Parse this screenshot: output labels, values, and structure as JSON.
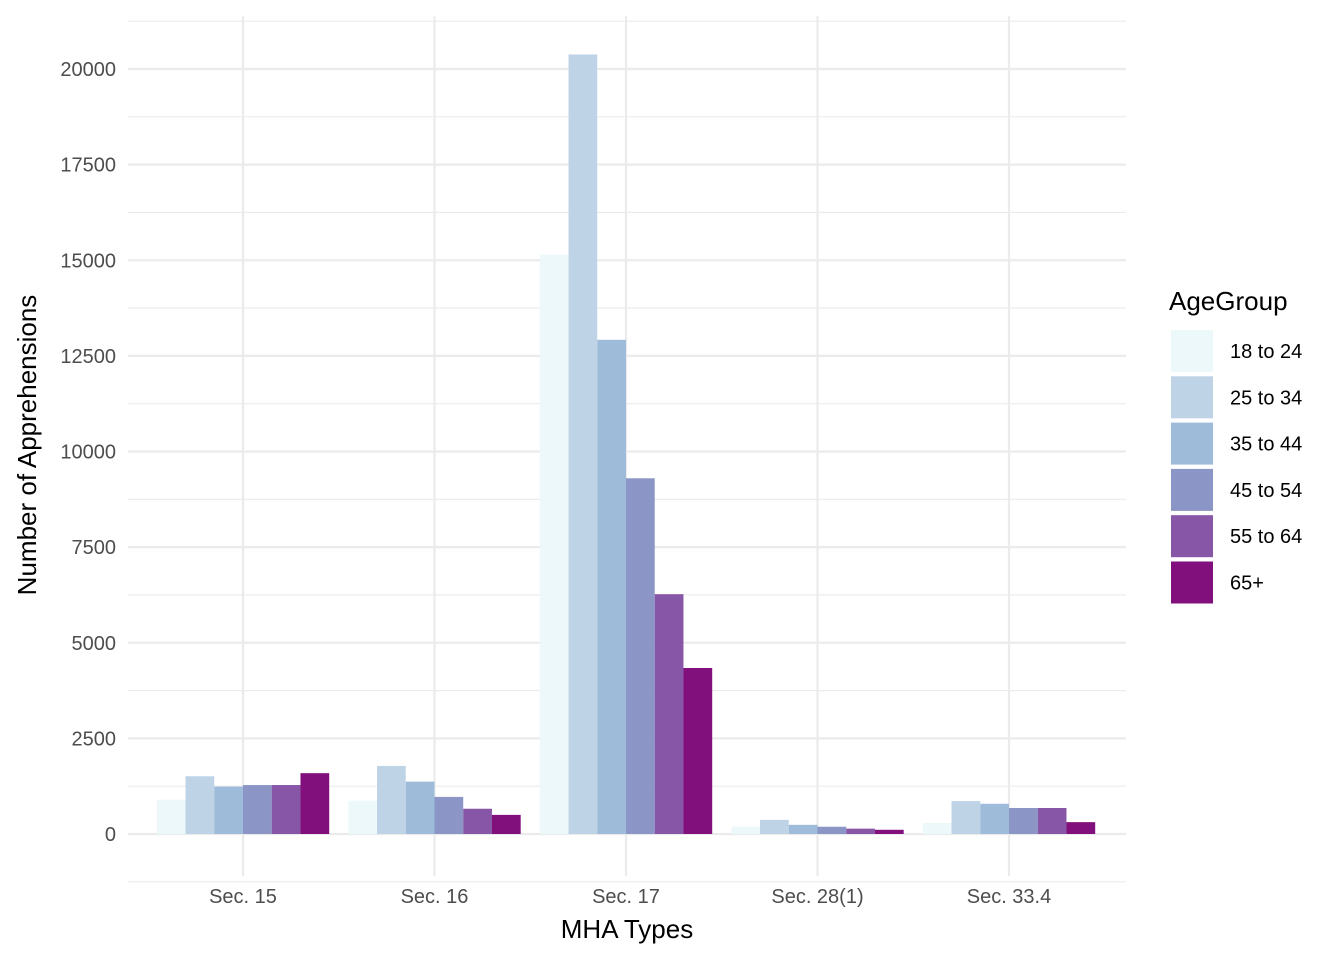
{
  "chart_data": {
    "type": "bar",
    "title": "",
    "xlabel": "MHA Types",
    "ylabel": "Number of Apprehensions",
    "categories": [
      "Sec. 15",
      "Sec. 16",
      "Sec. 17",
      "Sec. 28(1)",
      "Sec. 33.4"
    ],
    "ylim": [
      -1700,
      21700
    ],
    "yticks": [
      0,
      2500,
      5000,
      7500,
      10000,
      12500,
      15000,
      17500,
      20000
    ],
    "grid": true,
    "legend": {
      "title": "AgeGroup",
      "position": "right"
    },
    "series": [
      {
        "name": "18 to 24",
        "color": "#edf8fb",
        "values": [
          900,
          870,
          15150,
          190,
          290
        ]
      },
      {
        "name": "25 to 34",
        "color": "#bfd3e6",
        "values": [
          1510,
          1780,
          20380,
          370,
          860
        ]
      },
      {
        "name": "35 to 44",
        "color": "#9ebcda",
        "values": [
          1240,
          1370,
          12920,
          240,
          790
        ]
      },
      {
        "name": "45 to 54",
        "color": "#8c96c6",
        "values": [
          1280,
          970,
          9300,
          190,
          680
        ]
      },
      {
        "name": "55 to 64",
        "color": "#8856a7",
        "values": [
          1280,
          660,
          6270,
          140,
          680
        ]
      },
      {
        "name": "65+",
        "color": "#810f7c",
        "values": [
          1590,
          500,
          4340,
          110,
          310
        ]
      }
    ]
  }
}
